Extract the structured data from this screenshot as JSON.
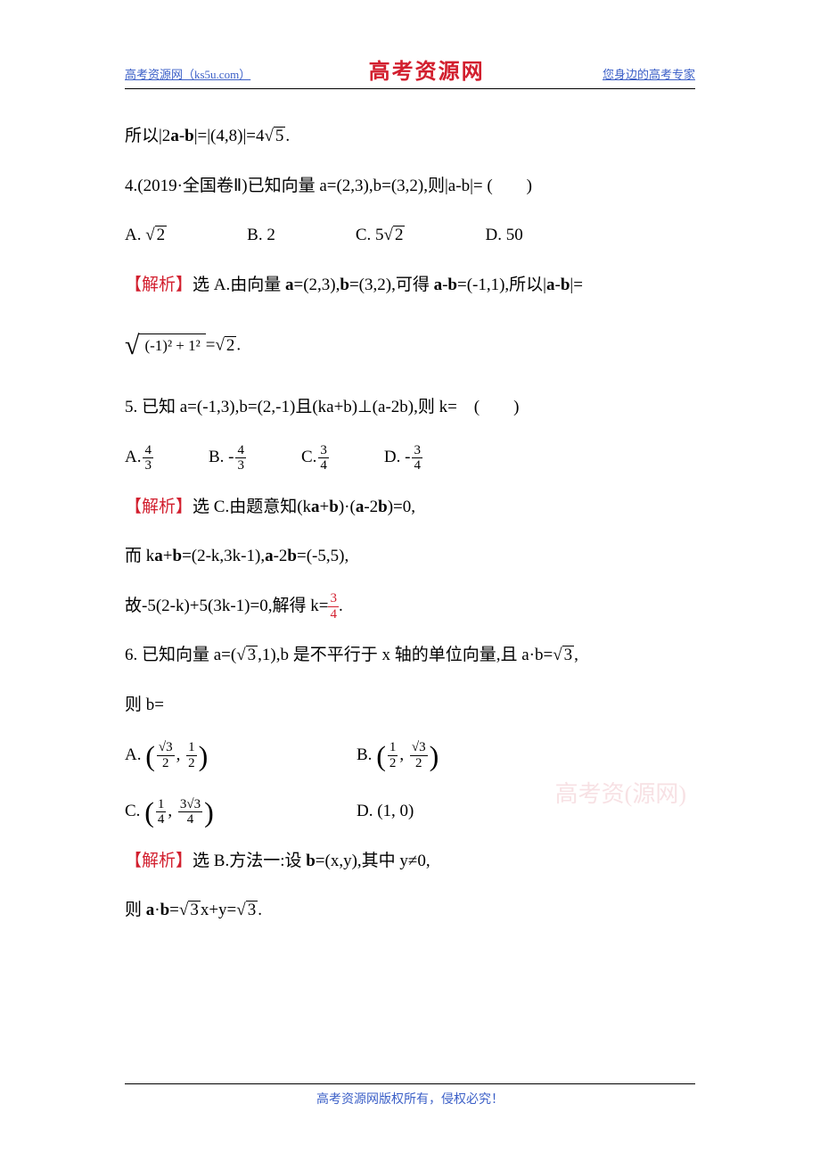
{
  "header": {
    "left": "高考资源网（ks5u.com）",
    "center": "高考资源网",
    "right": "您身边的高考专家"
  },
  "footer": "高考资源网版权所有，侵权必究！",
  "watermark": "高考资(源网)",
  "content": {
    "l1_pre": "所以|2",
    "l1_a": "a",
    "l1_mid": "-",
    "l1_b": "b",
    "l1_post": "|=|(4,8)|=4",
    "l1_sqrt": "5",
    "l1_end": ".",
    "q4": "4.(2019·全国卷Ⅱ)已知向量 a=(2,3),b=(3,2),则|a-b|= (　　)",
    "q4A": "A.",
    "q4A_sqrt": "2",
    "q4B": "B. 2",
    "q4C_pre": "C. 5",
    "q4C_sqrt": "2",
    "q4D": "D. 50",
    "a4_label": "【解析】",
    "a4_text_1": "选 A.由向量 ",
    "a4_a": "a",
    "a4_eq1": "=(2,3),",
    "a4_b": "b",
    "a4_eq2": "=(3,2),可得 ",
    "a4_a2": "a",
    "a4_minus": "-",
    "a4_b2": "b",
    "a4_eq3": "=(-1,1),所以|",
    "a4_a3": "a",
    "a4_minus2": "-",
    "a4_b3": "b",
    "a4_end": "|=",
    "a4_root_inner": "(-1)² + 1²",
    "a4_after_root": "=",
    "a4_sqrt2": "2",
    "a4_period": ".",
    "q5": "5. 已知 a=(-1,3),b=(2,-1)且(ka+b)⊥(a-2b),则 k=　(　　)",
    "q5A": "A.",
    "q5A_num": "4",
    "q5A_den": "3",
    "q5B": "B. -",
    "q5B_num": "4",
    "q5B_den": "3",
    "q5C": "C.",
    "q5C_num": "3",
    "q5C_den": "4",
    "q5D": "D. -",
    "q5D_num": "3",
    "q5D_den": "4",
    "a5_label": "【解析】",
    "a5_l1": "选 C.由题意知(k",
    "a5_a": "a",
    "a5_plus": "+",
    "a5_b": "b",
    "a5_dot": ")·(",
    "a5_a2": "a",
    "a5_m2": "-2",
    "a5_b2": "b",
    "a5_eq0": ")=0,",
    "a5_l2_pre": "而 k",
    "a5_l2_a": "a",
    "a5_l2_plus": "+",
    "a5_l2_b": "b",
    "a5_l2_eq": "=(2-k,3k-1),",
    "a5_l2_a2": "a",
    "a5_l2_m": "-2",
    "a5_l2_b2": "b",
    "a5_l2_end": "=(-5,5),",
    "a5_l3": "故-5(2-k)+5(3k-1)=0,解得 k=",
    "a5_l3_num": "3",
    "a5_l3_den": "4",
    "a5_l3_end": ".",
    "q6_pre": "6. 已知向量 a=(",
    "q6_sqrt": "3",
    "q6_mid": ",1),b 是不平行于 x 轴的单位向量,且 a·b=",
    "q6_sqrt2": "3",
    "q6_end": ",",
    "q6_l2": "则 b=",
    "q6A": "A.",
    "q6A_n1": "√3",
    "q6A_d1": "2",
    "q6A_n2": "1",
    "q6A_d2": "2",
    "q6B": "B.",
    "q6B_n1": "1",
    "q6B_d1": "2",
    "q6B_n2": "√3",
    "q6B_d2": "2",
    "q6C": "C.",
    "q6C_n1": "1",
    "q6C_d1": "4",
    "q6C_n2": "3√3",
    "q6C_d2": "4",
    "q6D": "D. (1, 0)",
    "a6_label": "【解析】",
    "a6_l1": "选 B.方法一:设 ",
    "a6_b": "b",
    "a6_l1_end": "=(x,y),其中 y≠0,",
    "a6_l2_pre": "则 ",
    "a6_a": "a",
    "a6_dot": "·",
    "a6_b2": "b",
    "a6_eq": "=",
    "a6_sqrt": "3",
    "a6_l2_end": "x+y=",
    "a6_sqrt2": "3",
    "a6_period": "."
  }
}
